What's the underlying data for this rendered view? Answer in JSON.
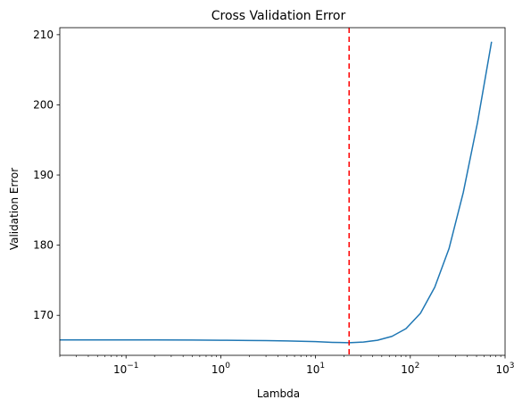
{
  "chart_data": {
    "type": "line",
    "title": "Cross Validation Error",
    "xlabel": "Lambda",
    "ylabel": "Validation Error",
    "xscale": "log",
    "xlim": [
      0.02,
      1000
    ],
    "ylim": [
      164.3,
      211.0
    ],
    "grid": false,
    "x_ticks": [
      {
        "value": 0.1,
        "base": "10",
        "exp": "−1"
      },
      {
        "value": 1,
        "base": "10",
        "exp": "0"
      },
      {
        "value": 10,
        "base": "10",
        "exp": "1"
      },
      {
        "value": 100,
        "base": "10",
        "exp": "2"
      },
      {
        "value": 1000,
        "base": "10",
        "exp": "3"
      }
    ],
    "y_ticks": [
      170,
      180,
      190,
      200,
      210
    ],
    "y_tick_labels": [
      "170",
      "180",
      "190",
      "200",
      "210"
    ],
    "series": [
      {
        "color": "#1f77b4",
        "points": [
          [
            0.02,
            166.5
          ],
          [
            0.05,
            166.5
          ],
          [
            0.1,
            166.5
          ],
          [
            0.2,
            166.5
          ],
          [
            0.5,
            166.48
          ],
          [
            1,
            166.45
          ],
          [
            2,
            166.42
          ],
          [
            3,
            166.4
          ],
          [
            5,
            166.35
          ],
          [
            7,
            166.3
          ],
          [
            10,
            166.25
          ],
          [
            15,
            166.15
          ],
          [
            22.6,
            166.1
          ],
          [
            32,
            166.2
          ],
          [
            45,
            166.45
          ],
          [
            64,
            167.0
          ],
          [
            90,
            168.1
          ],
          [
            128,
            170.3
          ],
          [
            181,
            174.0
          ],
          [
            256,
            179.5
          ],
          [
            362,
            187.5
          ],
          [
            512,
            197.5
          ],
          [
            720,
            209.0
          ]
        ]
      }
    ],
    "reference_line": {
      "x": 22.6,
      "color": "#ff0000",
      "style": "dashed"
    }
  }
}
